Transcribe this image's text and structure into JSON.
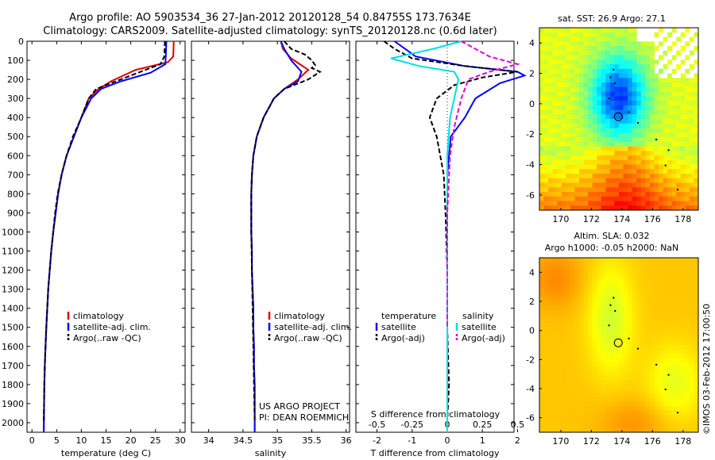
{
  "header": {
    "title_line1": "Argo profile: AO 5903534_36 27-Jan-2012 20120128_54 0.84755S 173.7634E",
    "title_line2": "Climatology: CARS2009. Satellite-adjusted climatology: synTS_20120128.nc (0.6d later)"
  },
  "colors": {
    "climatology": "#e00000",
    "satellite": "#0000ff",
    "argo": "#000000",
    "sal_satellite": "#00e0e0",
    "sal_argo": "#e000e0"
  },
  "chart_data": [
    {
      "type": "line",
      "name": "temperature-profile",
      "xlabel": "temperature (deg C)",
      "xlim": [
        -1,
        31
      ],
      "xticks": [
        "0",
        "5",
        "10",
        "15",
        "20",
        "25",
        "30"
      ],
      "xtick_values": [
        0,
        5,
        10,
        15,
        20,
        25,
        30
      ],
      "ylim": [
        0,
        2050
      ],
      "yticks": [
        "0",
        "100",
        "200",
        "300",
        "400",
        "500",
        "600",
        "700",
        "800",
        "900",
        "1000",
        "1100",
        "1200",
        "1300",
        "1400",
        "1500",
        "1600",
        "1700",
        "1800",
        "1900",
        "2000"
      ],
      "ytick_values": [
        0,
        100,
        200,
        300,
        400,
        500,
        600,
        700,
        800,
        900,
        1000,
        1100,
        1200,
        1300,
        1400,
        1500,
        1600,
        1700,
        1800,
        1900,
        2000
      ],
      "series": [
        {
          "name": "climatology",
          "color": "#e00000",
          "x": [
            28.7,
            28.6,
            27.5,
            21,
            16,
            13.5,
            11.5,
            10,
            8.5,
            7,
            6,
            5.3,
            4.8,
            4.3,
            3.9,
            3.6,
            3.3,
            3.1,
            2.9,
            2.75,
            2.6,
            2.5,
            2.45,
            2.4
          ],
          "y": [
            0,
            80,
            110,
            150,
            210,
            250,
            300,
            400,
            500,
            600,
            700,
            800,
            900,
            1000,
            1100,
            1200,
            1300,
            1400,
            1500,
            1600,
            1700,
            1800,
            1900,
            2050
          ]
        },
        {
          "name": "satellite-adj. clim.",
          "color": "#0000ff",
          "x": [
            27.2,
            27.1,
            27,
            24,
            18,
            14,
            12,
            10,
            8.5,
            7,
            6,
            5.3,
            4.8,
            4.3,
            3.9,
            3.6,
            3.3,
            3.1,
            2.9,
            2.75,
            2.6,
            2.5,
            2.45,
            2.4
          ],
          "y": [
            0,
            80,
            120,
            165,
            210,
            250,
            300,
            400,
            500,
            600,
            700,
            800,
            900,
            1000,
            1100,
            1200,
            1300,
            1400,
            1500,
            1600,
            1700,
            1800,
            1900,
            2050
          ]
        },
        {
          "name": "Argo(..raw -QC)",
          "color": "#000000",
          "dash": true,
          "x": [
            26.9,
            26.8,
            26,
            22,
            17,
            13,
            11.5,
            10,
            8.3,
            7,
            6,
            5.2,
            4.7,
            4.3,
            3.9,
            3.6,
            3.3,
            3.1,
            2.9,
            2.75,
            2.6,
            2.5,
            2.4
          ],
          "y": [
            0,
            80,
            120,
            160,
            210,
            250,
            300,
            400,
            500,
            600,
            700,
            800,
            900,
            1000,
            1100,
            1200,
            1300,
            1400,
            1500,
            1600,
            1700,
            1800,
            1990
          ]
        }
      ],
      "legend": [
        "climatology",
        "satellite-adj. clim.",
        "Argo(..raw -QC)"
      ]
    },
    {
      "type": "line",
      "name": "salinity-profile",
      "xlabel": "salinity",
      "xlim": [
        33.75,
        36.05
      ],
      "xticks": [
        "34",
        "34.5",
        "35",
        "35.5",
        "36"
      ],
      "xtick_values": [
        34,
        34.5,
        35,
        35.5,
        36
      ],
      "ylim": [
        0,
        2050
      ],
      "series": [
        {
          "name": "climatology",
          "color": "#e00000",
          "x": [
            35.05,
            35.08,
            35.2,
            35.45,
            35.3,
            35.1,
            34.95,
            34.8,
            34.7,
            34.65,
            34.63,
            34.62,
            34.62,
            34.62,
            34.63,
            34.63,
            34.64,
            34.65,
            34.65,
            34.66,
            34.66,
            34.67,
            34.67
          ],
          "y": [
            0,
            40,
            90,
            150,
            200,
            250,
            300,
            400,
            500,
            600,
            700,
            800,
            900,
            1000,
            1100,
            1200,
            1300,
            1400,
            1500,
            1600,
            1700,
            1800,
            2050
          ]
        },
        {
          "name": "satellite-adj. clim.",
          "color": "#0000ff",
          "x": [
            35.05,
            35.1,
            35.2,
            35.35,
            35.3,
            35.1,
            34.95,
            34.8,
            34.7,
            34.65,
            34.63,
            34.62,
            34.62,
            34.62,
            34.63,
            34.63,
            34.64,
            34.65,
            34.65,
            34.66,
            34.66,
            34.67,
            34.67
          ],
          "y": [
            0,
            40,
            100,
            160,
            210,
            250,
            300,
            400,
            500,
            600,
            700,
            800,
            900,
            1000,
            1100,
            1200,
            1300,
            1400,
            1500,
            1600,
            1700,
            1800,
            2050
          ]
        },
        {
          "name": "Argo(..raw -QC)",
          "color": "#000000",
          "dash": true,
          "x": [
            35.1,
            35.2,
            35.4,
            35.5,
            35.55,
            35.5,
            35.62,
            35.45,
            35.1,
            34.95,
            34.8,
            34.7,
            34.65,
            34.63,
            34.62,
            34.62,
            34.63,
            34.64,
            34.65,
            34.66,
            34.67
          ],
          "y": [
            0,
            40,
            70,
            100,
            125,
            140,
            160,
            200,
            250,
            300,
            400,
            500,
            600,
            700,
            800,
            1000,
            1200,
            1400,
            1600,
            1800,
            1990
          ]
        }
      ],
      "legend": [
        "climatology",
        "satellite-adj. clim.",
        "Argo(..raw -QC)"
      ],
      "annotation_line1": "US ARGO PROJECT",
      "annotation_line2": "PI: DEAN ROEMMICH"
    },
    {
      "type": "line",
      "name": "difference-profile",
      "xlabel": "T difference from climatology",
      "xlim": [
        -2.6,
        1.9
      ],
      "xticks": [
        "-2",
        "-1",
        "0",
        "1",
        "2"
      ],
      "xtick_values": [
        -2,
        -1,
        0,
        1,
        2
      ],
      "top_xlabel": "S difference from climatology",
      "top_xticks": [
        "-0.5",
        "-0.25",
        "0",
        "0.25",
        "0.5"
      ],
      "top_xtick_values": [
        -0.5,
        -0.25,
        0,
        0.25,
        0.5
      ],
      "s_scale_factor": 4,
      "ylim": [
        0,
        2050
      ],
      "series": [
        {
          "name": "temperature satellite",
          "color": "#0000ff",
          "kind": "T",
          "x": [
            -1.5,
            -1.2,
            -0.9,
            0.5,
            2.0,
            2.2,
            1.5,
            0.8,
            0.5,
            0.1,
            0,
            0,
            0,
            0,
            0,
            0
          ],
          "y": [
            0,
            40,
            80,
            130,
            160,
            180,
            220,
            300,
            400,
            500,
            700,
            900,
            1200,
            1500,
            1800,
            2050
          ]
        },
        {
          "name": "temperature Argo(-adj)",
          "color": "#000000",
          "kind": "T",
          "dash": true,
          "x": [
            -1.8,
            -1.5,
            -1.0,
            0.5,
            2.0,
            1.0,
            0.2,
            -0.3,
            -0.5,
            -0.3,
            -0.1,
            -0.05,
            0,
            0,
            0.05,
            0
          ],
          "y": [
            0,
            40,
            90,
            130,
            160,
            190,
            230,
            300,
            400,
            500,
            700,
            900,
            1200,
            1500,
            1800,
            1990
          ]
        },
        {
          "name": "salinity satellite",
          "color": "#00e0e0",
          "kind": "S",
          "x": [
            0.1,
            -0.1,
            -0.4,
            -0.2,
            0.05,
            0.08,
            0.05,
            0.02,
            0,
            0,
            0,
            0,
            0
          ],
          "y": [
            0,
            40,
            90,
            130,
            160,
            200,
            300,
            400,
            600,
            900,
            1300,
            1700,
            2050
          ]
        },
        {
          "name": "salinity Argo(-adj)",
          "color": "#e000e0",
          "kind": "S",
          "dash": true,
          "x": [
            0.1,
            0.2,
            0.3,
            0.5,
            0.3,
            0.15,
            0.1,
            0.05,
            0.02,
            0,
            0,
            0
          ],
          "y": [
            0,
            40,
            80,
            120,
            160,
            200,
            300,
            450,
            600,
            900,
            1200,
            1500
          ]
        }
      ],
      "legend_temperature_header": "temperature",
      "legend_salinity_header": "salinity",
      "legend_temperature": [
        "satellite",
        "Argo(-adj)"
      ],
      "legend_salinity": [
        "satellite",
        "Argo(-adj)"
      ]
    },
    {
      "type": "heatmap",
      "name": "sst-map",
      "title": "sat. SST: 26.9 Argo: 27.1",
      "xlim": [
        168.6,
        179
      ],
      "ylim": [
        -7,
        5
      ],
      "xticks": [
        "170",
        "172",
        "174",
        "176",
        "178"
      ],
      "xtick_values": [
        170,
        172,
        174,
        176,
        178
      ],
      "yticks": [
        "4",
        "2",
        "0",
        "-2",
        "-4",
        "-6"
      ],
      "ytick_values": [
        4,
        2,
        0,
        -2,
        -4,
        -6
      ],
      "float_position": [
        173.76,
        -0.85
      ],
      "colorscale": "jet",
      "value_range": [
        26.0,
        29.5
      ]
    },
    {
      "type": "heatmap",
      "name": "sla-map",
      "title_line1": "Altim. SLA: 0.032",
      "title_line2": "Argo h1000: -0.05 h2000: NaN",
      "xlim": [
        168.6,
        179
      ],
      "ylim": [
        -7,
        5
      ],
      "xticks": [
        "170",
        "172",
        "174",
        "176",
        "178"
      ],
      "xtick_values": [
        170,
        172,
        174,
        176,
        178
      ],
      "yticks": [
        "4",
        "2",
        "0",
        "-2",
        "-4",
        "-6"
      ],
      "ytick_values": [
        4,
        2,
        0,
        -2,
        -4,
        -6
      ],
      "float_position": [
        173.76,
        -0.85
      ],
      "colorscale": "jet",
      "value_range": [
        0.0,
        0.1
      ]
    }
  ],
  "footer": {
    "imos_stamp": "©IMOS 03-Feb-2012 17:00:50"
  }
}
